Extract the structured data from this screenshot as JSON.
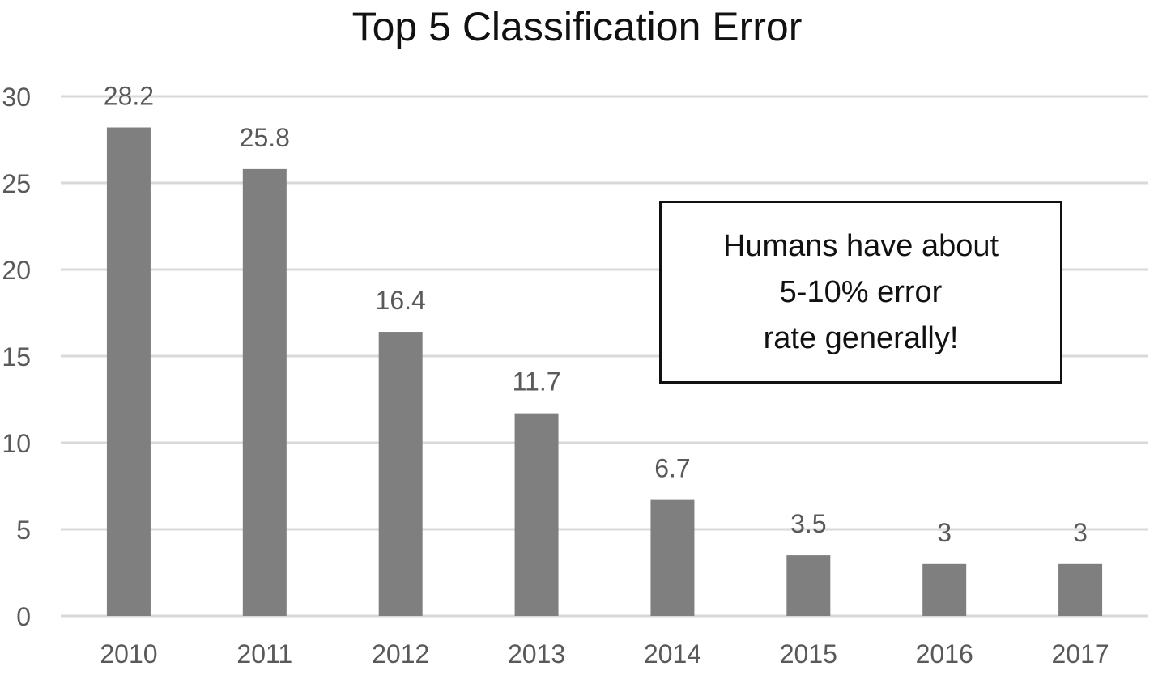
{
  "chart_data": {
    "type": "bar",
    "title": "Top 5 Classification Error",
    "categories": [
      "2010",
      "2011",
      "2012",
      "2013",
      "2014",
      "2015",
      "2016",
      "2017"
    ],
    "values": [
      28.2,
      25.8,
      16.4,
      11.7,
      6.7,
      3.5,
      3,
      3
    ],
    "data_labels": [
      "28.2",
      "25.8",
      "16.4",
      "11.7",
      "6.7",
      "3.5",
      "3",
      "3"
    ],
    "y_ticks": [
      0,
      5,
      10,
      15,
      20,
      25,
      30
    ],
    "ylim": [
      0,
      30
    ],
    "xlabel": "",
    "ylabel": "",
    "grid": true,
    "legend": "none",
    "bar_color": "#7f7f7f",
    "gridline_color": "#d9d9d9",
    "tick_label_color": "#595959",
    "annotation": {
      "lines": [
        "Humans have about",
        "5-10% error",
        "rate generally!"
      ]
    }
  }
}
